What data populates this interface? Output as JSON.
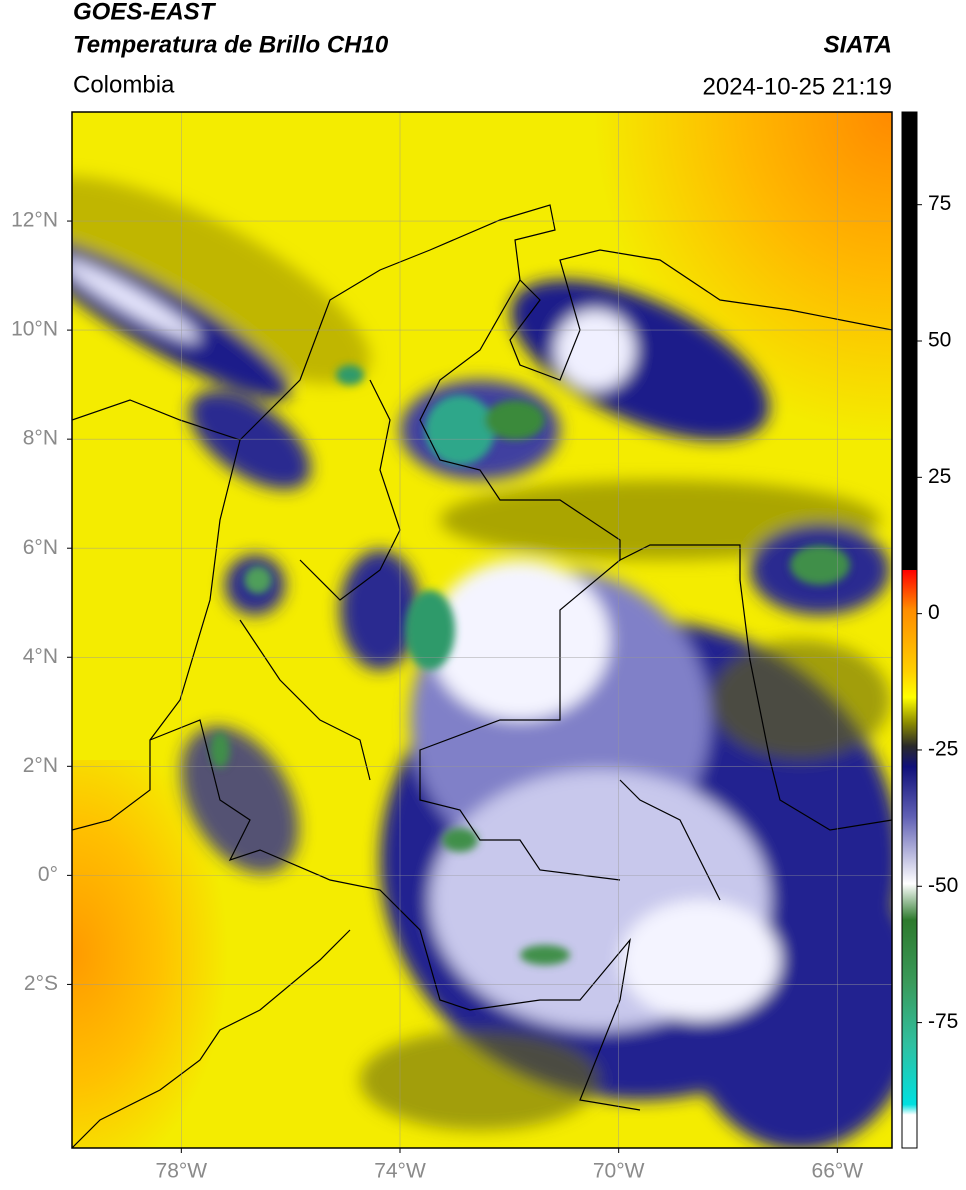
{
  "chart_data": {
    "type": "map",
    "title": "GOES-EAST",
    "subtitle": "Temperatura de Brillo CH10",
    "region": "Colombia",
    "source": "SIATA",
    "datetime": "2024-10-25 21:19",
    "xlim": [
      -80,
      -65
    ],
    "ylim": [
      -5,
      14
    ],
    "xticks": [
      {
        "value": -78,
        "label": "78°W"
      },
      {
        "value": -74,
        "label": "74°W"
      },
      {
        "value": -70,
        "label": "70°W"
      },
      {
        "value": -66,
        "label": "66°W"
      }
    ],
    "yticks": [
      {
        "value": 12,
        "label": "12°N"
      },
      {
        "value": 10,
        "label": "10°N"
      },
      {
        "value": 8,
        "label": "8°N"
      },
      {
        "value": 6,
        "label": "6°N"
      },
      {
        "value": 4,
        "label": "4°N"
      },
      {
        "value": 2,
        "label": "2°N"
      },
      {
        "value": 0,
        "label": "0°"
      },
      {
        "value": -2,
        "label": "2°S"
      }
    ],
    "grid": true,
    "colorbar": {
      "lim": [
        -98,
        92
      ],
      "ticks": [
        75,
        50,
        25,
        0,
        -25,
        -50,
        -75
      ]
    }
  }
}
